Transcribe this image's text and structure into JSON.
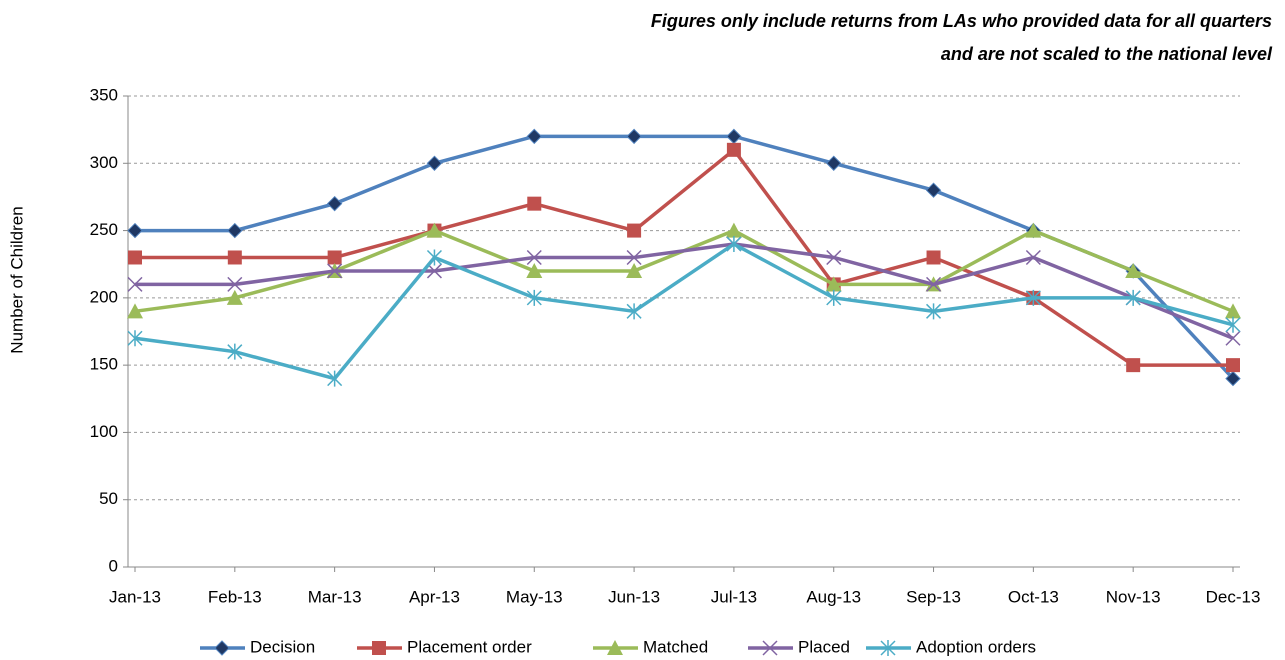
{
  "chart_data": {
    "type": "line",
    "annotations": [
      "Figures only include returns from LAs who provided data for all quarters",
      "and are not scaled to the national level"
    ],
    "y_label": "Number of Children",
    "categories": [
      "Jan-13",
      "Feb-13",
      "Mar-13",
      "Apr-13",
      "May-13",
      "Jun-13",
      "Jul-13",
      "Aug-13",
      "Sep-13",
      "Oct-13",
      "Nov-13",
      "Dec-13"
    ],
    "series": [
      {
        "name": "Decision",
        "color": "#4f81bd",
        "marker": "diamond",
        "values": [
          250,
          250,
          270,
          300,
          320,
          320,
          320,
          300,
          280,
          250,
          220,
          140
        ]
      },
      {
        "name": "Placement order",
        "color": "#c0504d",
        "marker": "square",
        "values": [
          230,
          230,
          230,
          250,
          270,
          250,
          310,
          210,
          230,
          200,
          150,
          150
        ]
      },
      {
        "name": "Matched",
        "color": "#9bbb59",
        "marker": "triangle",
        "values": [
          190,
          200,
          220,
          250,
          220,
          220,
          250,
          210,
          210,
          250,
          220,
          190
        ]
      },
      {
        "name": "Placed",
        "color": "#8064a2",
        "marker": "x",
        "values": [
          210,
          210,
          220,
          220,
          230,
          230,
          240,
          230,
          210,
          230,
          200,
          170
        ]
      },
      {
        "name": "Adoption orders",
        "color": "#4bacc6",
        "marker": "star",
        "values": [
          170,
          160,
          140,
          230,
          200,
          190,
          240,
          200,
          190,
          200,
          200,
          180
        ]
      }
    ],
    "ylim": [
      0,
      350
    ],
    "yticks": [
      0,
      50,
      100,
      150,
      200,
      250,
      300,
      350
    ],
    "grid": true,
    "legend": "bottom"
  }
}
